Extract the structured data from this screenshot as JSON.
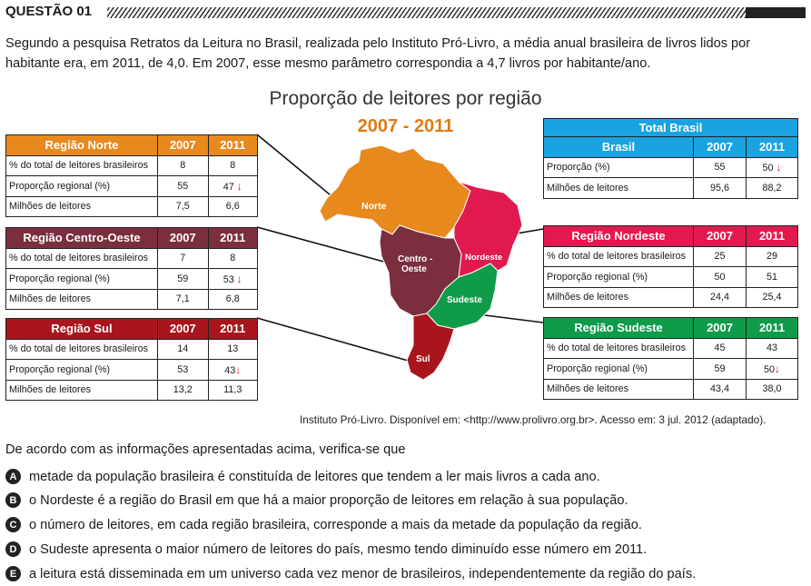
{
  "header": {
    "question": "QUESTÃO 01"
  },
  "intro": "Segundo a pesquisa Retratos da Leitura no Brasil, realizada pelo Instituto Pró-Livro, a média anual brasileira de livros lidos por habitante era, em 2011, de 4,0. Em 2007, esse mesmo parâmetro correspondia a 4,7 livros por habitante/ano.",
  "figure": {
    "title": "Proporção de leitores por região",
    "subtitle": "2007 - 2011",
    "map_labels": {
      "norte": "Norte",
      "centro1": "Centro -",
      "centro2": "Oeste",
      "nordeste": "Nordeste",
      "sudeste": "Sudeste",
      "sul": "Sul"
    },
    "colors": {
      "norte": "#e8891e",
      "centro": "#7a2e3e",
      "sul": "#a8151d",
      "brasil": "#1aa3e0",
      "nordeste": "#e01a4f",
      "sudeste": "#0f9b4a"
    },
    "tables": {
      "norte": {
        "title": "Região Norte",
        "y1": "2007",
        "y2": "2011",
        "rows": [
          {
            "label": "% do total de leitores brasileiros",
            "v1": "8",
            "v2": "8"
          },
          {
            "label": "Proporção regional (%)",
            "v1": "55",
            "v2": "47"
          },
          {
            "label": "Milhões de leitores",
            "v1": "7,5",
            "v2": "6,6"
          }
        ]
      },
      "centro": {
        "title": "Região Centro-Oeste",
        "y1": "2007",
        "y2": "2011",
        "rows": [
          {
            "label": "% do total de leitores brasileiros",
            "v1": "7",
            "v2": "8"
          },
          {
            "label": "Proporção regional (%)",
            "v1": "59",
            "v2": "53"
          },
          {
            "label": "Milhões de leitores",
            "v1": "7,1",
            "v2": "6,8"
          }
        ]
      },
      "sul": {
        "title": "Região Sul",
        "y1": "2007",
        "y2": "2011",
        "rows": [
          {
            "label": "% do total de leitores brasileiros",
            "v1": "14",
            "v2": "13"
          },
          {
            "label": "Proporção regional (%)",
            "v1": "53",
            "v2": "43"
          },
          {
            "label": "Milhões de leitores",
            "v1": "13,2",
            "v2": "11,3"
          }
        ]
      },
      "brasil": {
        "caption": "Total Brasil",
        "title": "Brasil",
        "y1": "2007",
        "y2": "2011",
        "rows": [
          {
            "label": "Proporção (%)",
            "v1": "55",
            "v2": "50"
          },
          {
            "label": "Milhões de leitores",
            "v1": "95,6",
            "v2": "88,2"
          }
        ]
      },
      "nordeste": {
        "title": "Região Nordeste",
        "y1": "2007",
        "y2": "2011",
        "rows": [
          {
            "label": "% do total de leitores brasileiros",
            "v1": "25",
            "v2": "29"
          },
          {
            "label": "Proporção regional (%)",
            "v1": "50",
            "v2": "51"
          },
          {
            "label": "Milhões de leitores",
            "v1": "24,4",
            "v2": "25,4"
          }
        ]
      },
      "sudeste": {
        "title": "Região Sudeste",
        "y1": "2007",
        "y2": "2011",
        "rows": [
          {
            "label": "% do total de leitores brasileiros",
            "v1": "45",
            "v2": "43"
          },
          {
            "label": "Proporção regional (%)",
            "v1": "59",
            "v2": "50"
          },
          {
            "label": "Milhões de leitores",
            "v1": "43,4",
            "v2": "38,0"
          }
        ]
      }
    },
    "source": "Instituto Pró-Livro. Disponível em: <http://www.prolivro.org.br>. Acesso em: 3 jul. 2012 (adaptado)."
  },
  "question": {
    "lead": "De acordo com as informações apresentadas acima, verifica-se que",
    "options": [
      {
        "letter": "A",
        "text": "metade da população brasileira é constituída de leitores que tendem a ler mais livros a cada ano."
      },
      {
        "letter": "B",
        "text": "o Nordeste é a região do Brasil em que há a maior proporção de leitores em relação à sua população."
      },
      {
        "letter": "C",
        "text": "o número de leitores, em cada região brasileira, corresponde a mais da metade da população da região."
      },
      {
        "letter": "D",
        "text": "o Sudeste apresenta o maior número de leitores do país, mesmo tendo diminuído esse número em 2011."
      },
      {
        "letter": "E",
        "text": "a leitura está disseminada em um universo cada vez menor de brasileiros, independentemente da região do país."
      }
    ]
  }
}
